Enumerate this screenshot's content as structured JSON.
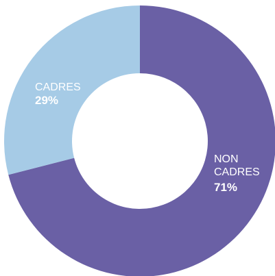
{
  "chart_data": {
    "type": "pie",
    "style": "donut",
    "slices": [
      {
        "label_lines": [
          "NON",
          "CADRES"
        ],
        "value": 71,
        "value_label": "71%",
        "color": "#6a60a5"
      },
      {
        "label_lines": [
          "CADRES"
        ],
        "value": 29,
        "value_label": "29%",
        "color": "#a6cbe6"
      }
    ]
  }
}
